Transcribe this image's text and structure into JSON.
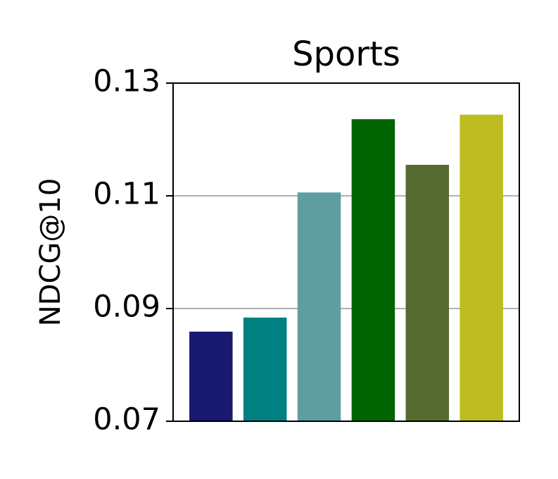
{
  "chart_data": {
    "type": "bar",
    "title": "Sports",
    "y_label": "NDCG@10",
    "categories": [
      null,
      null,
      null,
      null,
      null,
      null
    ],
    "values": [
      0.0859,
      0.0884,
      0.1106,
      0.1236,
      0.1155,
      0.1244
    ],
    "colors": [
      "#191970",
      "#008080",
      "#5f9ea0",
      "#006400",
      "#556b2f",
      "#bdbd22"
    ],
    "ylim": [
      0.07,
      0.13
    ],
    "yticks": [
      0.07,
      0.09,
      0.11,
      0.13
    ],
    "grid": true
  }
}
